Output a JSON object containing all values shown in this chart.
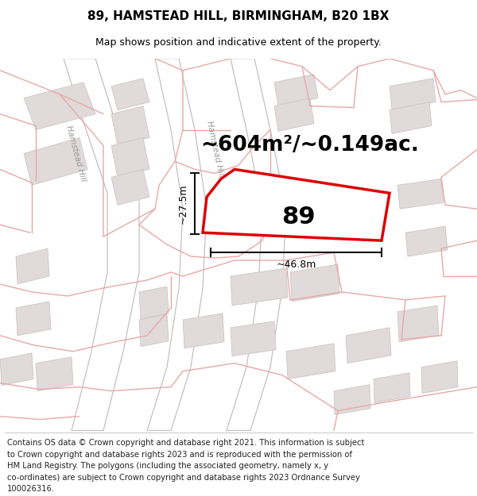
{
  "title": "89, HAMSTEAD HILL, BIRMINGHAM, B20 1BX",
  "subtitle": "Map shows position and indicative extent of the property.",
  "area_label": "~604m²/~0.149ac.",
  "number_label": "89",
  "dim_width": "~46.8m",
  "dim_height": "~27.5m",
  "street_label1": "Hamstead Hill",
  "street_label2": "Hamstead Hill",
  "map_bg": "#f7f4f4",
  "building_color": "#e0dada",
  "building_edge": "#c8c0c0",
  "road_fill": "#eedcdc",
  "plot_outline_color": "#dd0000",
  "dim_line_color": "#111111",
  "pink_line": "#e8a8a8",
  "gray_line": "#c0b8b8",
  "title_fontsize": 11,
  "subtitle_fontsize": 9,
  "footer_fontsize": 7.2,
  "area_fontsize": 19,
  "number_fontsize": 22,
  "street_fontsize": 7.5,
  "footer_lines": [
    "Contains OS data © Crown copyright and database right 2021. This information is subject",
    "to Crown copyright and database rights 2023 and is reproduced with the permission of",
    "HM Land Registry. The polygons (including the associated geometry, namely x, y",
    "co-ordinates) are subject to Crown copyright and database rights 2023 Ordnance Survey",
    "100026316."
  ]
}
